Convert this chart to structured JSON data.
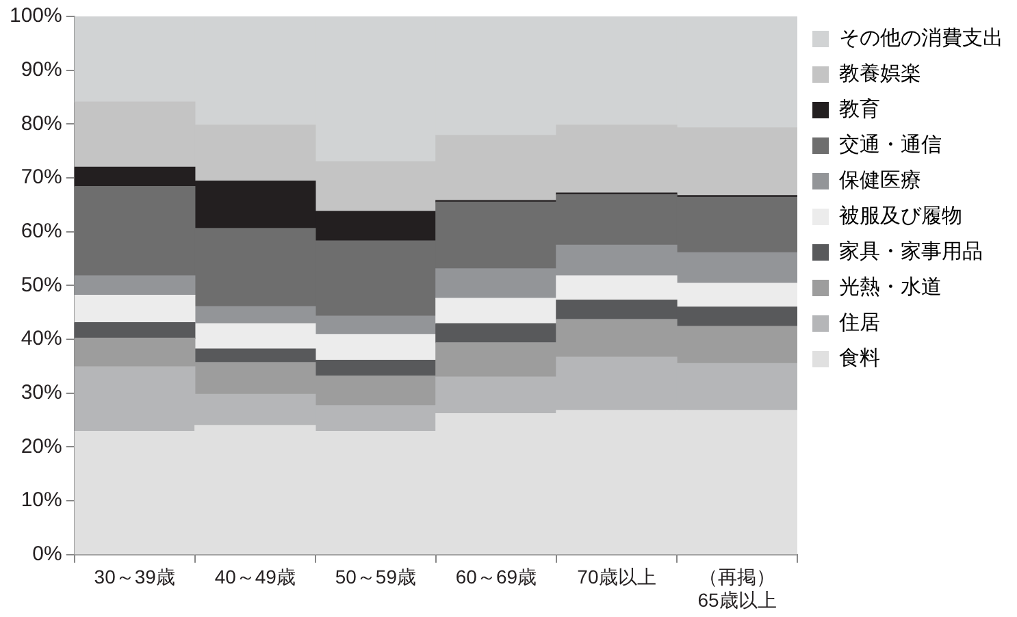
{
  "chart_data": {
    "type": "bar",
    "stacked": true,
    "categories": [
      "30～39歳",
      "40～49歳",
      "50～59歳",
      "60～69歳",
      "70歳以上",
      "（再掲）\n65歳以上"
    ],
    "series": [
      {
        "name": "食料",
        "color": "#e0e0e0",
        "values": [
          22.9,
          24.0,
          22.9,
          26.2,
          26.8,
          26.8
        ]
      },
      {
        "name": "住居",
        "color": "#b5b6b8",
        "values": [
          12.0,
          5.8,
          4.8,
          6.8,
          9.9,
          8.7
        ]
      },
      {
        "name": "光熱・水道",
        "color": "#9d9d9d",
        "values": [
          5.3,
          5.9,
          5.5,
          6.4,
          7.0,
          6.9
        ]
      },
      {
        "name": "家具・家事用品",
        "color": "#58595b",
        "values": [
          2.9,
          2.5,
          2.9,
          3.5,
          3.6,
          3.6
        ]
      },
      {
        "name": "被服及び履物",
        "color": "#ececec",
        "values": [
          5.1,
          4.7,
          4.8,
          4.7,
          4.5,
          4.4
        ]
      },
      {
        "name": "保健医療",
        "color": "#939598",
        "values": [
          3.6,
          3.2,
          3.4,
          5.5,
          5.7,
          5.7
        ]
      },
      {
        "name": "交通・通信",
        "color": "#6e6e6e",
        "values": [
          16.6,
          14.5,
          14.0,
          12.4,
          9.4,
          10.3
        ]
      },
      {
        "name": "教育",
        "color": "#231f20",
        "values": [
          3.6,
          8.8,
          5.5,
          0.3,
          0.3,
          0.3
        ]
      },
      {
        "name": "教養娯楽",
        "color": "#c4c4c4",
        "values": [
          12.1,
          10.4,
          9.2,
          12.1,
          12.6,
          12.6
        ]
      },
      {
        "name": "その他の消費支出",
        "color": "#d1d3d4",
        "values": [
          15.9,
          20.2,
          27.0,
          22.1,
          20.2,
          20.7
        ]
      }
    ],
    "ylim": [
      0,
      100
    ],
    "yticks": [
      {
        "value": 0,
        "label": "0%"
      },
      {
        "value": 10,
        "label": "10%"
      },
      {
        "value": 20,
        "label": "20%"
      },
      {
        "value": 30,
        "label": "30%"
      },
      {
        "value": 40,
        "label": "40%"
      },
      {
        "value": 50,
        "label": "50%"
      },
      {
        "value": 60,
        "label": "60%"
      },
      {
        "value": 70,
        "label": "70%"
      },
      {
        "value": 80,
        "label": "80%"
      },
      {
        "value": 90,
        "label": "90%"
      },
      {
        "value": 100,
        "label": "100%"
      }
    ],
    "grid": false,
    "legend": "right"
  }
}
